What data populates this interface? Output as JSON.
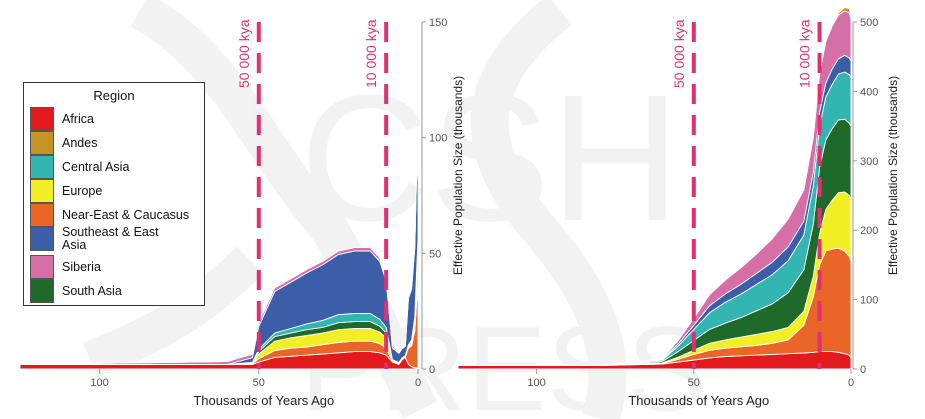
{
  "legend": {
    "title": "Region",
    "items": [
      {
        "label": "Africa",
        "color": "#e31a1c"
      },
      {
        "label": "Andes",
        "color": "#c69424"
      },
      {
        "label": "Central Asia",
        "color": "#33b5b1"
      },
      {
        "label": "Europe",
        "color": "#f2ef25"
      },
      {
        "label": "Near-East & Caucasus",
        "color": "#ea6628"
      },
      {
        "label": "Southeast & East Asia",
        "color": "#3c5ea8"
      },
      {
        "label": "Siberia",
        "color": "#d66ea8"
      },
      {
        "label": "South Asia",
        "color": "#1f6a2b"
      }
    ]
  },
  "watermark": "CSH PRESS",
  "chart_data": [
    {
      "type": "area",
      "xlabel": "Thousands of Years Ago",
      "ylabel": "Effective Population Size (thousands)",
      "x_ticks": [
        100,
        50,
        0
      ],
      "y_ticks": [
        0,
        50,
        100,
        150
      ],
      "xlim": [
        125,
        0
      ],
      "ylim": [
        0,
        150
      ],
      "markers": [
        {
          "x": 50,
          "label": "50 000 kya"
        },
        {
          "x": 10,
          "label": "10 000 kya"
        }
      ],
      "x": [
        125,
        80,
        60,
        52,
        50,
        45,
        40,
        35,
        30,
        25,
        20,
        15,
        12,
        10,
        8,
        6,
        5,
        4,
        3,
        2,
        1,
        0.5,
        0
      ],
      "series": [
        {
          "name": "Africa",
          "values": [
            2,
            2,
            2,
            2,
            3,
            5,
            5.5,
            6,
            6.5,
            7,
            7.5,
            7.5,
            7,
            6,
            3,
            2,
            4,
            5,
            2,
            1,
            0.5,
            0.5,
            0.3
          ]
        },
        {
          "name": "Near-East & Caucasus",
          "values": [
            0,
            0,
            0,
            0.2,
            1.5,
            3,
            3.5,
            3.5,
            4,
            4.5,
            4.5,
            4.5,
            4,
            3,
            0.3,
            0.2,
            0.2,
            0.2,
            7,
            9,
            16,
            27,
            36
          ]
        },
        {
          "name": "Europe",
          "values": [
            0,
            0,
            0,
            0.3,
            2,
            4,
            4.5,
            5,
            5,
            5.5,
            5.5,
            5.5,
            5,
            4.5,
            0.3,
            0.2,
            0.2,
            0.2,
            0.5,
            1,
            3,
            7,
            12
          ]
        },
        {
          "name": "South Asia",
          "values": [
            0,
            0,
            0,
            0.2,
            1,
            2,
            2,
            2.5,
            2.5,
            3,
            3,
            3,
            2.5,
            2,
            0.2,
            0.2,
            0.2,
            0.2,
            0.5,
            0.8,
            1.5,
            3,
            4
          ]
        },
        {
          "name": "Central Asia",
          "values": [
            0,
            0,
            0,
            0.2,
            1,
            1.5,
            2,
            2.5,
            3,
            3.5,
            3.5,
            3.5,
            3,
            2.5,
            0.2,
            0.2,
            0.2,
            0.2,
            0.5,
            0.8,
            1.5,
            3,
            4
          ]
        },
        {
          "name": "Southeast & East Asia",
          "values": [
            0,
            0,
            0,
            2,
            10,
            18,
            20,
            22,
            24,
            26,
            27,
            27,
            25,
            20,
            5,
            4,
            4,
            4,
            20,
            22,
            30,
            40,
            35
          ]
        },
        {
          "name": "Siberia",
          "values": [
            0,
            0.8,
            1.2,
            1.5,
            1.5,
            1.5,
            1.5,
            1.5,
            1.5,
            1.5,
            1.5,
            1.5,
            1.5,
            1.5,
            0.2,
            0.2,
            0.2,
            0.2,
            0.5,
            1,
            1,
            1.5,
            2
          ]
        },
        {
          "name": "Andes",
          "values": [
            0,
            0,
            0,
            0,
            0,
            0,
            0,
            0,
            0,
            0,
            0,
            0,
            0,
            1.5,
            1,
            0.2,
            0.2,
            0.2,
            0.2,
            0.3,
            0.3,
            0.3,
            0.3
          ]
        }
      ]
    },
    {
      "type": "area",
      "xlabel": "Thousands of Years Ago",
      "ylabel": "Effective Population Size (thousands)",
      "x_ticks": [
        100,
        50,
        0
      ],
      "y_ticks": [
        0,
        100,
        200,
        300,
        400,
        500
      ],
      "xlim": [
        125,
        0
      ],
      "ylim": [
        0,
        500
      ],
      "markers": [
        {
          "x": 50,
          "label": "50 000 kya"
        },
        {
          "x": 10,
          "label": "10 000 kya"
        }
      ],
      "x": [
        125,
        80,
        60,
        55,
        50,
        45,
        40,
        35,
        30,
        25,
        20,
        15,
        12,
        10,
        8,
        6,
        4,
        2,
        0.5,
        0
      ],
      "series": [
        {
          "name": "Africa",
          "values": [
            5,
            5,
            7,
            10,
            13,
            16,
            18,
            19,
            20,
            21,
            22,
            23,
            24,
            25,
            25,
            25,
            24,
            22,
            20,
            15
          ]
        },
        {
          "name": "Near-East & Caucasus",
          "values": [
            0,
            0,
            1,
            4,
            8,
            11,
            12,
            13,
            14,
            16,
            20,
            40,
            80,
            125,
            145,
            148,
            150,
            148,
            142,
            140
          ]
        },
        {
          "name": "Europe",
          "values": [
            0,
            0,
            1,
            3,
            6,
            10,
            12,
            14,
            16,
            17,
            18,
            20,
            30,
            45,
            60,
            70,
            80,
            85,
            88,
            90
          ]
        },
        {
          "name": "South Asia",
          "values": [
            0,
            0,
            2,
            8,
            14,
            20,
            24,
            28,
            34,
            40,
            50,
            60,
            75,
            95,
            100,
            103,
            105,
            105,
            104,
            105
          ]
        },
        {
          "name": "Central Asia",
          "values": [
            0,
            0,
            2,
            8,
            16,
            24,
            30,
            34,
            38,
            42,
            46,
            50,
            55,
            60,
            62,
            64,
            66,
            68,
            70,
            70
          ]
        },
        {
          "name": "Southeast & East Asia",
          "values": [
            0,
            0,
            1,
            3,
            6,
            10,
            12,
            14,
            16,
            18,
            20,
            20,
            20,
            20,
            20,
            22,
            22,
            24,
            24,
            24
          ]
        },
        {
          "name": "Siberia",
          "values": [
            0,
            0,
            1,
            5,
            10,
            16,
            20,
            24,
            28,
            34,
            40,
            45,
            50,
            55,
            60,
            62,
            63,
            64,
            65,
            60
          ]
        },
        {
          "name": "Andes",
          "values": [
            0,
            0,
            0,
            0,
            0,
            0,
            0,
            0,
            0,
            0,
            0,
            0,
            0,
            0,
            1,
            2,
            3,
            5,
            6,
            5
          ]
        }
      ]
    }
  ]
}
